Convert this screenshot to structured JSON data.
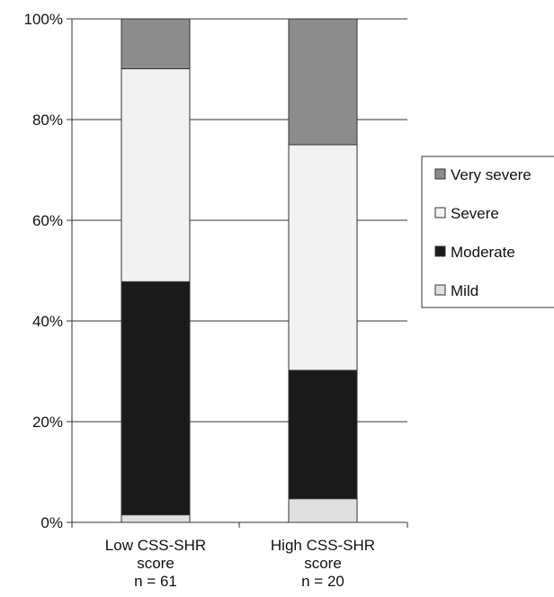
{
  "chart_data": {
    "type": "bar",
    "stacked": true,
    "categories": [
      [
        "Low CSS-SHR",
        "score",
        "n = 61"
      ],
      [
        "High CSS-SHR",
        "score",
        "n = 20"
      ]
    ],
    "series": [
      {
        "name": "Mild",
        "color": "#e0e0e0",
        "values": [
          1.5,
          4.7
        ]
      },
      {
        "name": "Moderate",
        "color": "#1a1a1a",
        "values": [
          46.3,
          25.5
        ]
      },
      {
        "name": "Severe",
        "color": "#f2f2f2",
        "values": [
          42.3,
          44.8
        ]
      },
      {
        "name": "Very severe",
        "color": "#8c8c8c",
        "values": [
          9.9,
          25.0
        ]
      }
    ],
    "legend_order": [
      "Very severe",
      "Severe",
      "Moderate",
      "Mild"
    ],
    "legend_position": "right",
    "yticks": [
      "0%",
      "20%",
      "40%",
      "60%",
      "80%",
      "100%"
    ],
    "ylim": [
      0,
      100
    ],
    "grid": true,
    "title": "",
    "xlabel": "",
    "ylabel": ""
  }
}
